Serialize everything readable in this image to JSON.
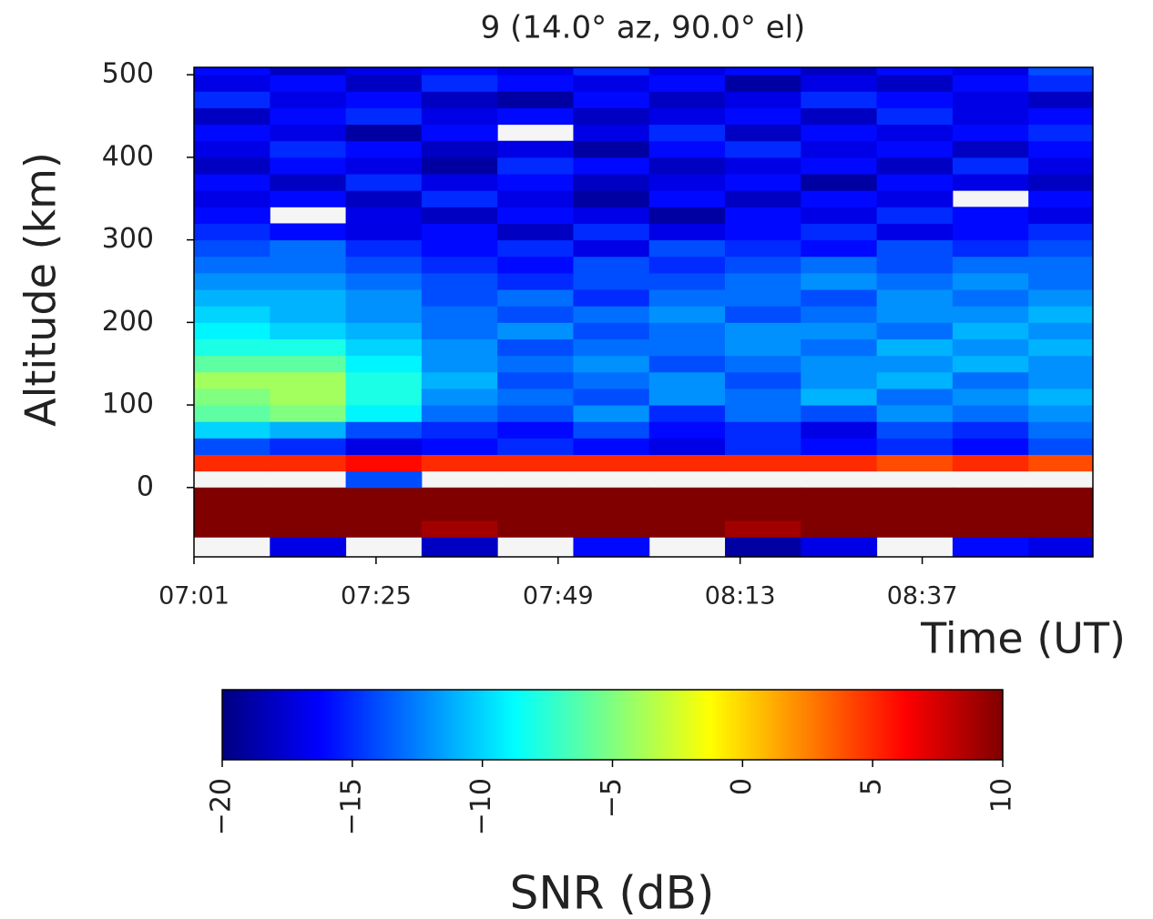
{
  "chart_data": {
    "type": "heatmap",
    "title": "9 (14.0° az,  90.0° el)",
    "x_label": "Time (UT)",
    "y_label": "Altitude (km)",
    "colorbar_label": "SNR (dB)",
    "colormap": "jet",
    "clim": [
      -20,
      10
    ],
    "cticks": [
      {
        "value": -20,
        "label": "−20"
      },
      {
        "value": -15,
        "label": "−15"
      },
      {
        "value": -10,
        "label": "−10"
      },
      {
        "value": -5,
        "label": "−5"
      },
      0,
      5,
      10
    ],
    "xlim": [
      421,
      539.5
    ],
    "xticks": [
      {
        "value": 421,
        "label": "07:01"
      },
      {
        "value": 445,
        "label": "07:25"
      },
      {
        "value": 469,
        "label": "07:49"
      },
      {
        "value": 493,
        "label": "08:13"
      },
      {
        "value": 517,
        "label": "08:37"
      }
    ],
    "ylim": [
      -84,
      509
    ],
    "yticks": [
      0,
      100,
      200,
      300,
      400,
      500
    ],
    "x_edges": [
      421,
      431,
      441,
      451,
      461,
      471,
      481,
      491,
      501,
      511,
      521,
      531,
      539.5
    ],
    "y_edges": [
      -84,
      -60,
      -40,
      -20,
      0,
      20,
      40,
      60,
      80,
      100,
      120,
      140,
      160,
      180,
      200,
      220,
      240,
      260,
      280,
      300,
      320,
      340,
      360,
      380,
      400,
      420,
      440,
      460,
      480,
      500,
      509
    ],
    "z": [
      [
        null,
        -17,
        null,
        -18,
        null,
        -16,
        null,
        -19,
        -17,
        null,
        -16,
        -17
      ],
      [
        10,
        10,
        10,
        9,
        10,
        10,
        10,
        9,
        10,
        10,
        10,
        10
      ],
      [
        10,
        10,
        10,
        10,
        10,
        10,
        10,
        10,
        10,
        10,
        10,
        10
      ],
      [
        10,
        10,
        10,
        10,
        10,
        10,
        10,
        10,
        10,
        10,
        10,
        10
      ],
      [
        null,
        null,
        -14,
        null,
        null,
        null,
        null,
        null,
        null,
        null,
        null,
        null
      ],
      [
        5,
        5,
        6,
        5,
        5,
        5,
        5,
        5,
        5,
        4,
        5,
        4
      ],
      [
        -14,
        -15,
        -17,
        -16,
        -15,
        -16,
        -17,
        -15,
        -16,
        -15,
        -16,
        -14
      ],
      [
        -10,
        -11,
        -14,
        -15,
        -16,
        -14,
        -16,
        -15,
        -17,
        -14,
        -15,
        -13
      ],
      [
        -6,
        -5,
        -9,
        -13,
        -14,
        -12,
        -15,
        -13,
        -14,
        -12,
        -13,
        -12
      ],
      [
        -5,
        -4,
        -8,
        -12,
        -13,
        -14,
        -12,
        -13,
        -11,
        -13,
        -12,
        -11
      ],
      [
        -4,
        -4,
        -8,
        -11,
        -14,
        -13,
        -12,
        -14,
        -12,
        -11,
        -13,
        -12
      ],
      [
        -6,
        -6,
        -9,
        -12,
        -13,
        -12,
        -14,
        -13,
        -12,
        -12,
        -11,
        -12
      ],
      [
        -8,
        -8,
        -10,
        -12,
        -14,
        -13,
        -13,
        -12,
        -13,
        -11,
        -12,
        -11
      ],
      [
        -9,
        -10,
        -11,
        -13,
        -12,
        -14,
        -13,
        -12,
        -12,
        -13,
        -11,
        -12
      ],
      [
        -10,
        -11,
        -12,
        -13,
        -14,
        -13,
        -12,
        -14,
        -13,
        -12,
        -12,
        -11
      ],
      [
        -11,
        -11,
        -12,
        -14,
        -13,
        -15,
        -13,
        -13,
        -14,
        -12,
        -13,
        -12
      ],
      [
        -12,
        -12,
        -13,
        -14,
        -15,
        -14,
        -14,
        -13,
        -12,
        -13,
        -12,
        -13
      ],
      [
        -13,
        -13,
        -14,
        -15,
        -16,
        -14,
        -15,
        -14,
        -13,
        -14,
        -13,
        -13
      ],
      [
        -14,
        -13,
        -15,
        -16,
        -15,
        -17,
        -14,
        -15,
        -16,
        -14,
        -15,
        -14
      ],
      [
        -15,
        -16,
        -17,
        -16,
        -18,
        -15,
        -17,
        -16,
        -15,
        -17,
        -16,
        -15
      ],
      [
        -16,
        null,
        -17,
        -18,
        -16,
        -17,
        -19,
        -16,
        -17,
        -15,
        -16,
        -17
      ],
      [
        -17,
        -16,
        -18,
        -15,
        -17,
        -19,
        -16,
        -18,
        -16,
        -17,
        null,
        -16
      ],
      [
        -16,
        -18,
        -15,
        -17,
        -16,
        -18,
        -17,
        -16,
        -19,
        -16,
        -17,
        -18
      ],
      [
        -18,
        -16,
        -17,
        -19,
        -15,
        -16,
        -18,
        -17,
        -16,
        -18,
        -15,
        -17
      ],
      [
        -17,
        -15,
        -16,
        -18,
        -17,
        -19,
        -16,
        -15,
        -17,
        -16,
        -18,
        -16
      ],
      [
        -16,
        -17,
        -19,
        -16,
        null,
        -17,
        -15,
        -18,
        -16,
        -17,
        -16,
        -15
      ],
      [
        -18,
        -16,
        -15,
        -17,
        -16,
        -18,
        -17,
        -16,
        -18,
        -15,
        -17,
        -16
      ],
      [
        -15,
        -17,
        -16,
        -18,
        -19,
        -16,
        -18,
        -17,
        -15,
        -16,
        -17,
        -18
      ],
      [
        -17,
        -16,
        -18,
        -15,
        -16,
        -17,
        -16,
        -19,
        -17,
        -18,
        -16,
        -15
      ],
      [
        -16,
        -18,
        -17,
        -16,
        -17,
        -15,
        -17,
        -16,
        -18,
        -16,
        -17,
        -14
      ]
    ]
  }
}
